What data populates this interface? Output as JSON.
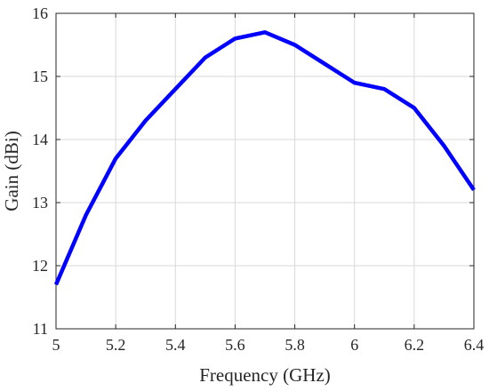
{
  "chart_data": {
    "type": "line",
    "title": "",
    "xlabel": "Frequency (GHz)",
    "ylabel": "Gain (dBi)",
    "xlim": [
      5,
      6.4
    ],
    "ylim": [
      11,
      16
    ],
    "x_ticks": [
      5,
      5.2,
      5.4,
      5.6,
      5.8,
      6,
      6.2,
      6.4
    ],
    "x_tick_labels": [
      "5",
      "5.2",
      "5.4",
      "5.6",
      "5.8",
      "6",
      "6.2",
      "6.4"
    ],
    "y_ticks": [
      11,
      12,
      13,
      14,
      15,
      16
    ],
    "y_tick_labels": [
      "11",
      "12",
      "13",
      "14",
      "15",
      "16"
    ],
    "grid": true,
    "legend": "none",
    "series": [
      {
        "color": "#0000ff",
        "x": [
          5.0,
          5.1,
          5.2,
          5.3,
          5.4,
          5.5,
          5.6,
          5.7,
          5.8,
          5.9,
          6.0,
          6.1,
          6.2,
          6.3,
          6.4
        ],
        "y": [
          11.7,
          12.8,
          13.7,
          14.3,
          14.8,
          15.3,
          15.6,
          15.7,
          15.5,
          15.2,
          14.9,
          14.8,
          14.5,
          13.9,
          13.2
        ]
      }
    ]
  }
}
